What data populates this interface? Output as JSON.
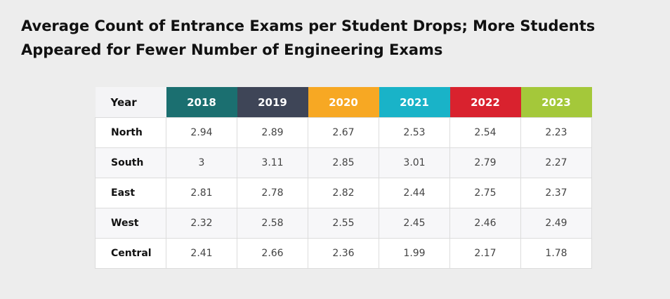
{
  "header": {
    "title": "Average Count of Entrance Exams per Student Drops; More Students Appeared for Fewer Number of Engineering Exams"
  },
  "table": {
    "columns": [
      "Year",
      "2018",
      "2019",
      "2020",
      "2021",
      "2022",
      "2023"
    ],
    "rows": [
      [
        "North",
        "2.94",
        "2.89",
        "2.67",
        "2.53",
        "2.54",
        "2.23"
      ],
      [
        "South",
        "3",
        "3.11",
        "2.85",
        "3.01",
        "2.79",
        "2.27"
      ],
      [
        "East",
        "2.81",
        "2.78",
        "2.82",
        "2.44",
        "2.75",
        "2.37"
      ],
      [
        "West",
        "2.32",
        "2.58",
        "2.55",
        "2.45",
        "2.46",
        "2.49"
      ],
      [
        "Central",
        "2.41",
        "2.66",
        "2.36",
        "1.99",
        "2.17",
        "1.78"
      ]
    ]
  }
}
